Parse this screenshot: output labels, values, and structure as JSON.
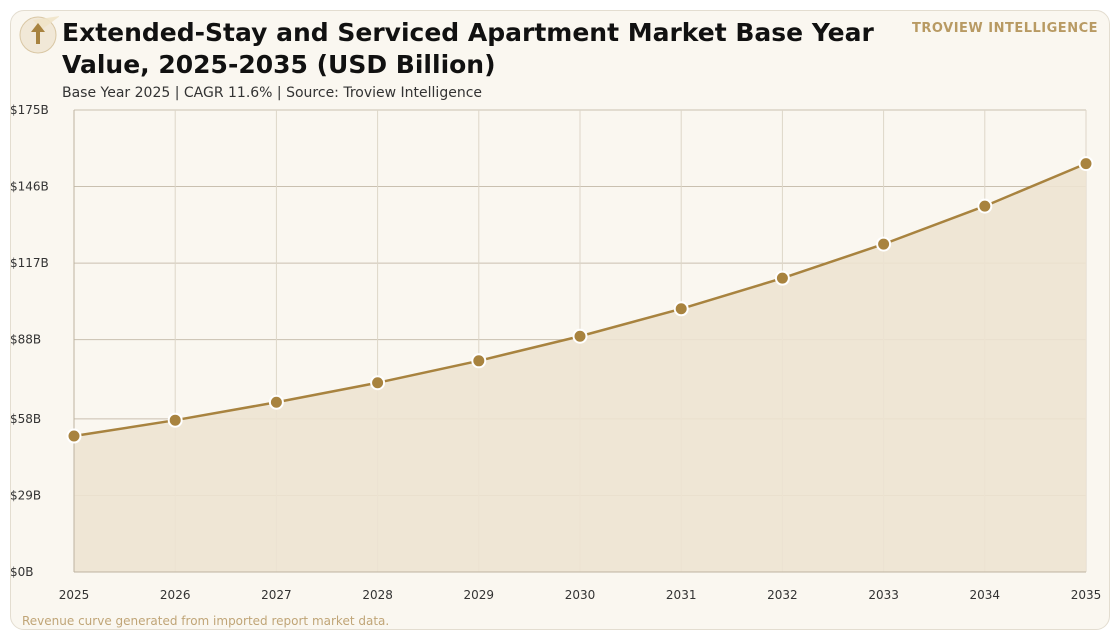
{
  "header": {
    "title": "Extended-Stay and Serviced Apartment Market Base Year Value, 2025-2035 (USD Billion)",
    "subtitle": "Base Year 2025 | CAGR 11.6% | Source: Troview Intelligence",
    "brand": "TROVIEW INTELLIGENCE",
    "logo_icon": "upward-arrow-icon"
  },
  "footer": {
    "note": "Revenue curve generated from imported report market data."
  },
  "colors": {
    "background": "#faf7f0",
    "line": "#a8833f",
    "marker": "#a8833f",
    "area_fill": "#ede3d1",
    "grid": "#c9c0b0",
    "brand": "#b89a63"
  },
  "chart_data": {
    "type": "area",
    "title": "Extended-Stay and Serviced Apartment Market Base Year Value, 2025-2035 (USD Billion)",
    "subtitle": "Base Year 2025 | CAGR 11.6% | Source: Troview Intelligence",
    "xlabel": "",
    "ylabel": "",
    "x": [
      "2025",
      "2026",
      "2027",
      "2028",
      "2029",
      "2030",
      "2031",
      "2032",
      "2033",
      "2034",
      "2035"
    ],
    "series": [
      {
        "values": [
          51.5,
          57.5,
          64.3,
          71.7,
          80.0,
          89.3,
          99.7,
          111.3,
          124.2,
          138.6,
          154.7
        ]
      }
    ],
    "ylim": [
      0,
      175
    ],
    "yticks": [
      0,
      29,
      58,
      88,
      117,
      146,
      175
    ],
    "ytick_labels": [
      "$0B",
      "$29B",
      "$58B",
      "$88B",
      "$117B",
      "$146B",
      "$175B"
    ],
    "grid": true,
    "markers": true,
    "legend": "none"
  }
}
